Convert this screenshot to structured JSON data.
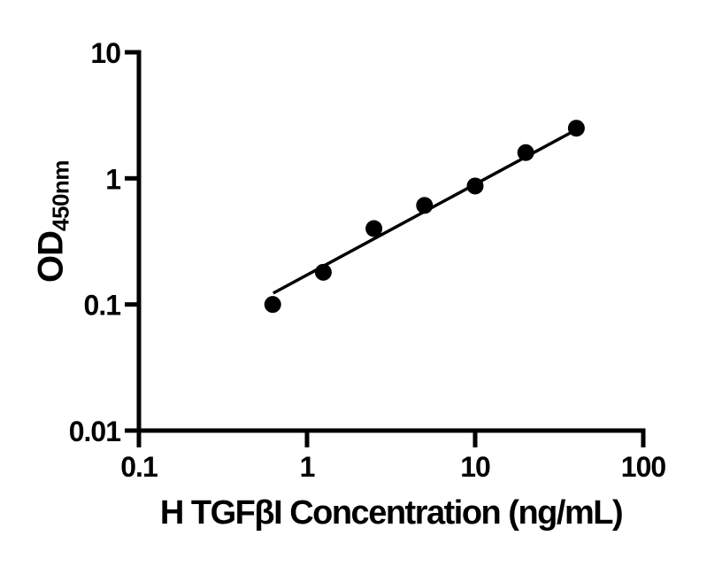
{
  "chart_data": {
    "type": "scatter",
    "scale": "log-log",
    "xlabel": "H TGFβI Concentration (ng/mL)",
    "ylabel_main": "OD",
    "ylabel_sub": "450nm",
    "x": [
      0.625,
      1.25,
      2.5,
      5,
      10,
      20,
      40
    ],
    "y": [
      0.1,
      0.18,
      0.4,
      0.61,
      0.87,
      1.6,
      2.5
    ],
    "xlim": [
      0.1,
      100
    ],
    "ylim": [
      0.01,
      10
    ],
    "x_ticks": [
      0.1,
      1,
      10,
      100
    ],
    "x_tick_labels": [
      "0.1",
      "1",
      "10",
      "100"
    ],
    "y_ticks": [
      10,
      1,
      0.1,
      0.01
    ],
    "y_tick_labels": [
      "10",
      "1",
      "0.1",
      "0.01"
    ],
    "fit_line": {
      "x1": 0.63,
      "y1": 0.123,
      "x2": 42,
      "y2": 2.52
    },
    "grid": false,
    "legend": "none",
    "marker_color": "#000000",
    "line_color": "#000000",
    "axis_color": "#000000",
    "background_color": "#ffffff"
  }
}
